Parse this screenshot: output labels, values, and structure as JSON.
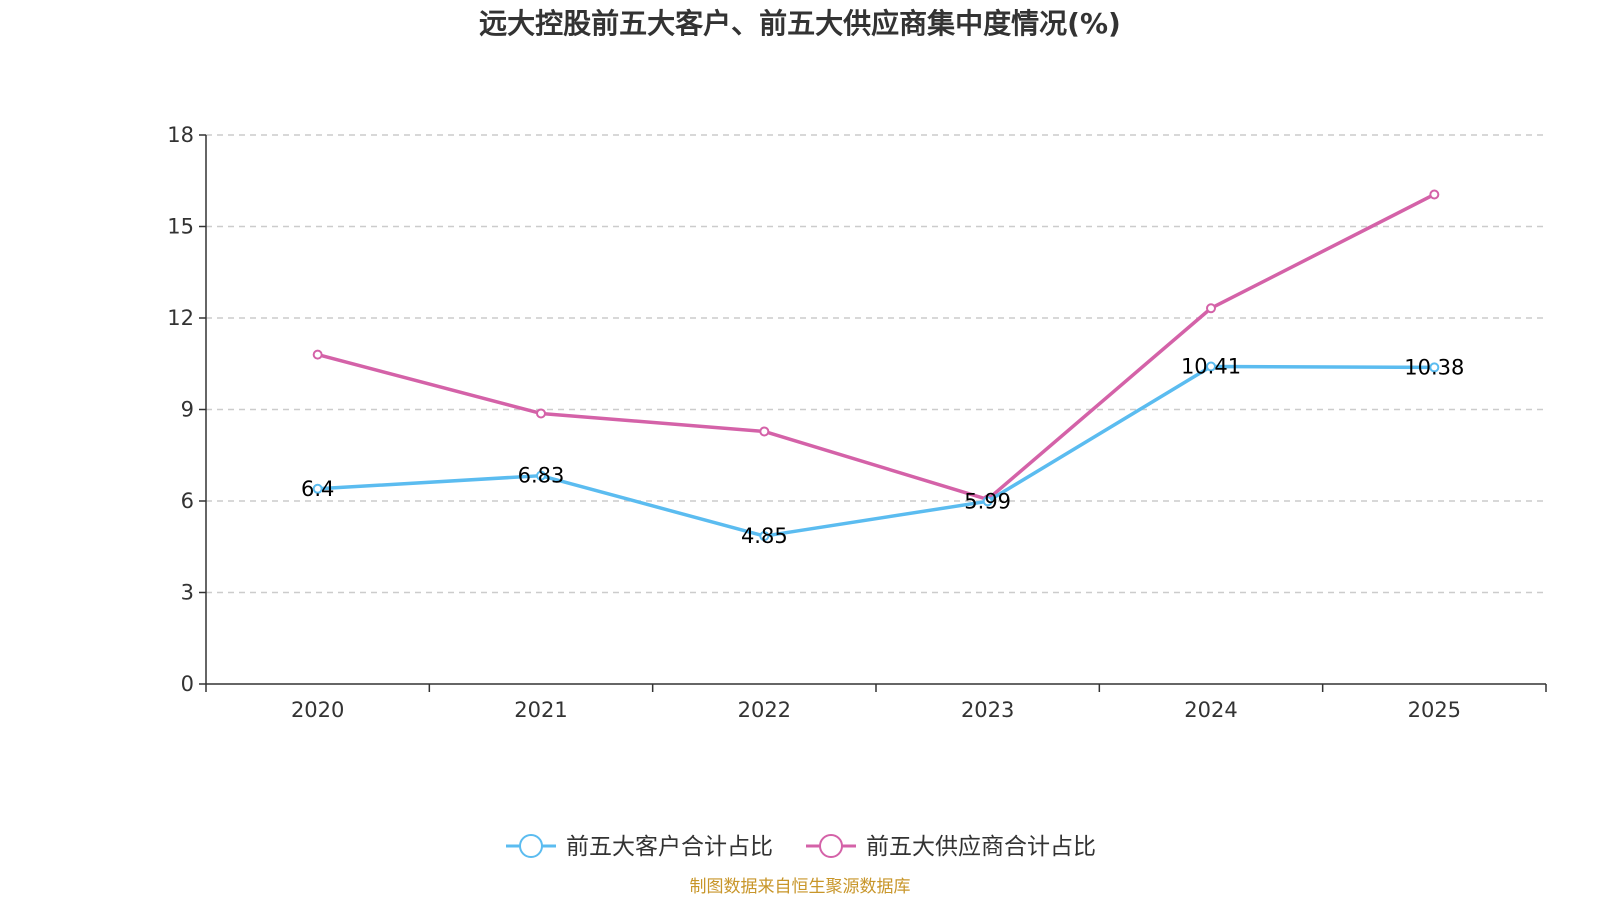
{
  "chart_data": {
    "type": "line",
    "title": "远大控股前五大客户、前五大供应商集中度情况(%)",
    "categories": [
      "2020",
      "2021",
      "2022",
      "2023",
      "2024",
      "2025"
    ],
    "ylim": [
      0,
      18
    ],
    "yticks": [
      0,
      3,
      6,
      9,
      12,
      15,
      18
    ],
    "grid": true,
    "legend_position": "bottom",
    "series": [
      {
        "name": "前五大客户合计占比",
        "color": "#5bbcf0",
        "values": [
          6.4,
          6.83,
          4.85,
          5.99,
          10.41,
          10.38
        ],
        "labels": [
          "6.4",
          "6.83",
          "4.85",
          "5.99",
          "10.41",
          "10.38"
        ]
      },
      {
        "name": "前五大供应商合计占比",
        "color": "#d462a8",
        "values": [
          10.8,
          8.87,
          8.28,
          6.05,
          12.32,
          16.05
        ],
        "labels": []
      }
    ]
  },
  "source": {
    "text": "制图数据来自恒生聚源数据库",
    "color": "#c8962a"
  },
  "colors": {
    "axis": "#333333",
    "grid": "#cccccc"
  }
}
